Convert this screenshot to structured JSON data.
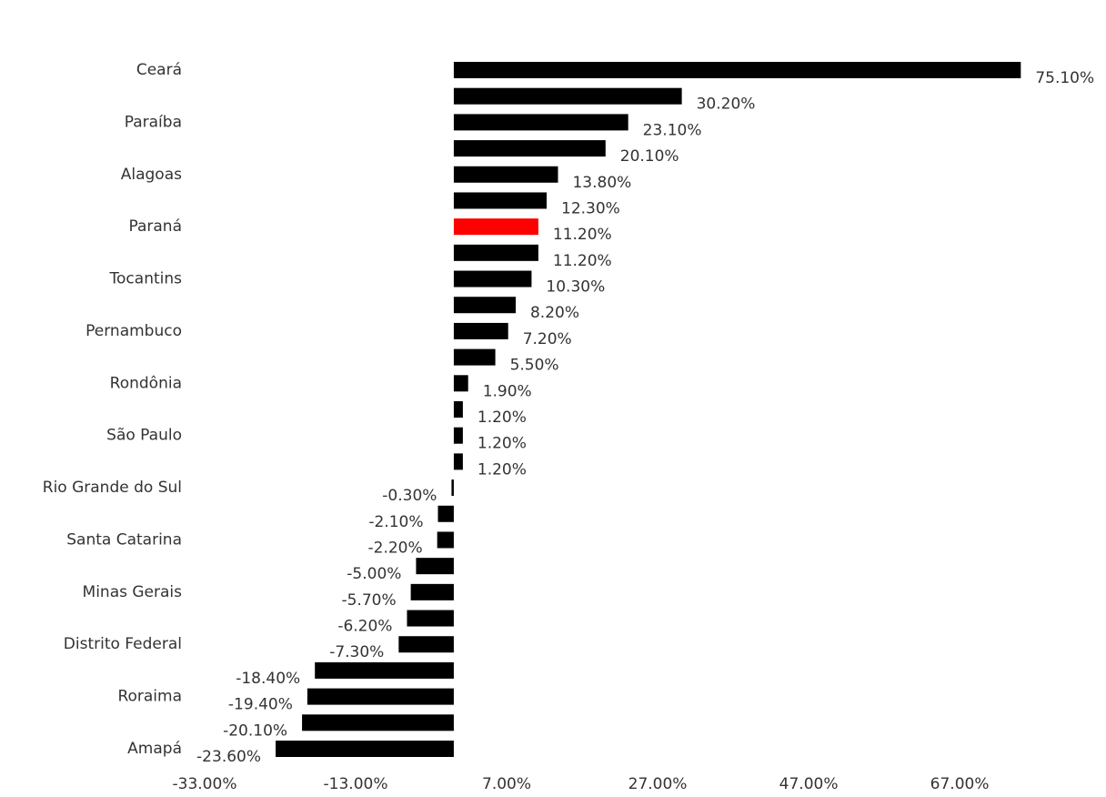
{
  "chart_data": {
    "type": "hbar",
    "categories": [
      "Ceará",
      null,
      "Paraíba",
      null,
      "Alagoas",
      null,
      "Paraná",
      null,
      "Tocantins",
      null,
      "Pernambuco",
      null,
      "Rondônia",
      null,
      "São Paulo",
      null,
      "Rio Grande do Sul",
      null,
      "Santa Catarina",
      null,
      "Minas Gerais",
      null,
      "Distrito Federal",
      null,
      "Roraima",
      null,
      "Amapá"
    ],
    "values": [
      75.1,
      30.2,
      23.1,
      20.1,
      13.8,
      12.3,
      11.2,
      11.2,
      10.3,
      8.2,
      7.2,
      5.5,
      1.9,
      1.2,
      1.2,
      1.2,
      -0.3,
      -2.1,
      -2.2,
      -5.0,
      -5.7,
      -6.2,
      -7.3,
      -18.4,
      -19.4,
      -20.1,
      -23.6
    ],
    "value_labels": [
      "75.10%",
      "30.20%",
      "23.10%",
      "20.10%",
      "13.80%",
      "12.30%",
      "11.20%",
      "11.20%",
      "10.30%",
      "8.20%",
      "7.20%",
      "5.50%",
      "1.90%",
      "1.20%",
      "1.20%",
      "1.20%",
      "-0.30%",
      "-2.10%",
      "-2.20%",
      "-5.00%",
      "-5.70%",
      "-6.20%",
      "-7.30%",
      "-18.40%",
      "-19.40%",
      "-20.10%",
      "-23.60%"
    ],
    "colors": [
      "#000000",
      "#000000",
      "#000000",
      "#000000",
      "#000000",
      "#000000",
      "#ff0000",
      "#000000",
      "#000000",
      "#000000",
      "#000000",
      "#000000",
      "#000000",
      "#000000",
      "#000000",
      "#000000",
      "#000000",
      "#000000",
      "#000000",
      "#000000",
      "#000000",
      "#000000",
      "#000000",
      "#000000",
      "#000000",
      "#000000",
      "#000000"
    ],
    "xlim": [
      -33,
      80
    ],
    "xticks": [
      {
        "value": -33,
        "label": "-33.00%"
      },
      {
        "value": -13,
        "label": "-13.00%"
      },
      {
        "value": 7,
        "label": "7.00%"
      },
      {
        "value": 27,
        "label": "27.00%"
      },
      {
        "value": 47,
        "label": "47.00%"
      },
      {
        "value": 67,
        "label": "67.00%"
      }
    ]
  }
}
